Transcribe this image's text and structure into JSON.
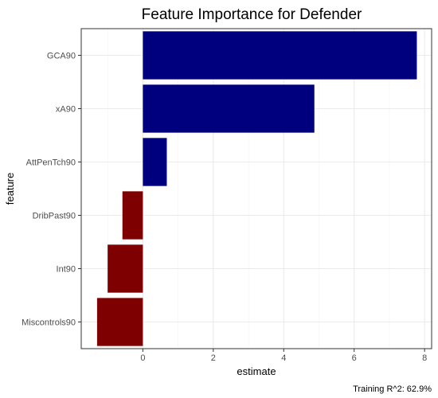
{
  "chart_data": {
    "type": "bar",
    "orientation": "horizontal",
    "title": "Feature Importance for Defender",
    "xlabel": "estimate",
    "ylabel": "feature",
    "caption": "Training R^2: 62.9%",
    "categories": [
      "GCA90",
      "xA90",
      "AttPenTch90",
      "DribPast90",
      "Int90",
      "Miscontrols90"
    ],
    "values": [
      7.78,
      4.87,
      0.68,
      -0.58,
      -1.0,
      -1.3
    ],
    "xlim": [
      -1.75,
      8.2
    ],
    "xticks": [
      0,
      2,
      4,
      6,
      8
    ],
    "grid": true,
    "legend": "none",
    "colors": {
      "positive": "#00007f",
      "negative": "#7f0000",
      "grid_major": "#ebebeb",
      "grid_minor": "#f4f4f4",
      "panel_border": "#333333",
      "tick_text": "#4d4d4d"
    }
  }
}
